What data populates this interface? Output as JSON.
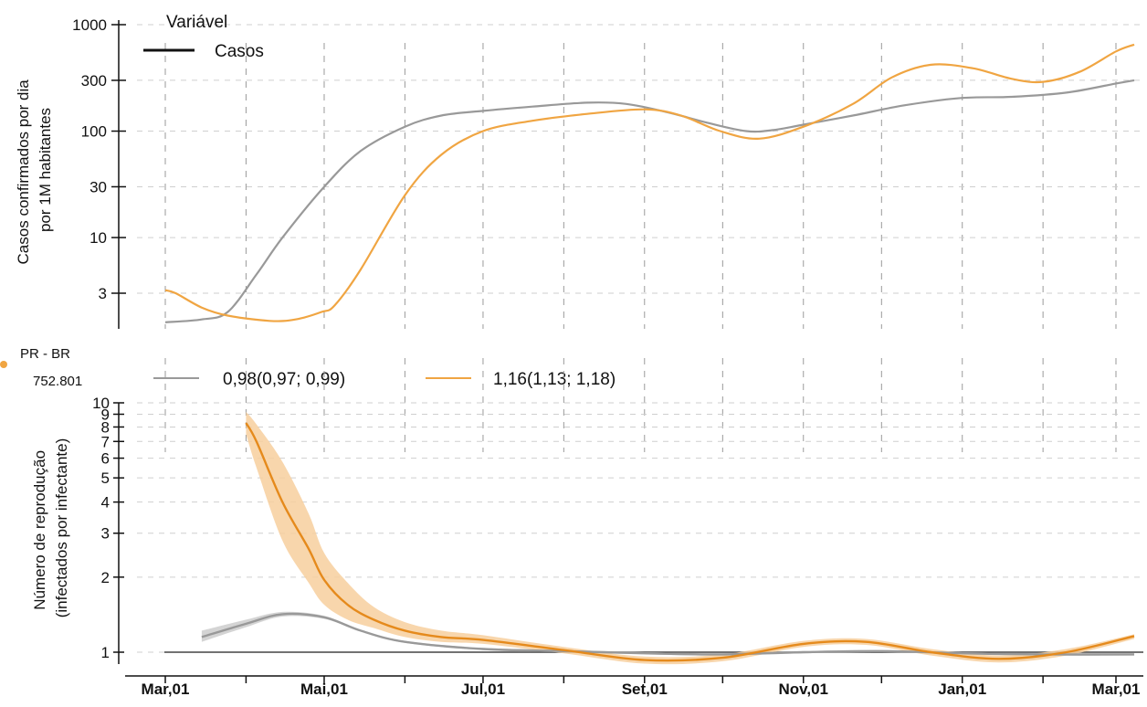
{
  "chart_data": [
    {
      "type": "line",
      "ylabel": "Casos confirmados por dia\npor 1M habitantes",
      "yscale": "log",
      "ylim": [
        1.5,
        1000
      ],
      "yticks": [
        {
          "value": 3,
          "label": "3"
        },
        {
          "value": 10,
          "label": "10"
        },
        {
          "value": 30,
          "label": "30"
        },
        {
          "value": 100,
          "label": "100"
        },
        {
          "value": 300,
          "label": "300"
        },
        {
          "value": 1000,
          "label": "1000"
        }
      ],
      "legend": {
        "title": "Variável",
        "items": [
          {
            "label": "Casos",
            "color": "#111111"
          }
        ]
      },
      "xlim": [
        "2020-03-01",
        "2021-03-01"
      ],
      "series": [
        {
          "color": "#999999",
          "points": [
            [
              "2020-03-01",
              1.6
            ],
            [
              "2020-03-15",
              1.7
            ],
            [
              "2020-03-25",
              2.0
            ],
            [
              "2020-04-05",
              4.5
            ],
            [
              "2020-04-15",
              10
            ],
            [
              "2020-05-01",
              30
            ],
            [
              "2020-05-15",
              65
            ],
            [
              "2020-06-01",
              110
            ],
            [
              "2020-06-15",
              140
            ],
            [
              "2020-07-01",
              155
            ],
            [
              "2020-07-20",
              170
            ],
            [
              "2020-08-10",
              185
            ],
            [
              "2020-08-25",
              180
            ],
            [
              "2020-09-10",
              150
            ],
            [
              "2020-09-25",
              120
            ],
            [
              "2020-10-10",
              100
            ],
            [
              "2020-10-20",
              102
            ],
            [
              "2020-11-01",
              115
            ],
            [
              "2020-11-20",
              140
            ],
            [
              "2020-12-10",
              175
            ],
            [
              "2021-01-01",
              205
            ],
            [
              "2021-01-20",
              210
            ],
            [
              "2021-02-10",
              230
            ],
            [
              "2021-03-01",
              280
            ],
            [
              "2021-03-08",
              300
            ]
          ]
        },
        {
          "color": "#f0a542",
          "points": [
            [
              "2020-03-01",
              3.2
            ],
            [
              "2020-03-05",
              3.0
            ],
            [
              "2020-03-15",
              2.2
            ],
            [
              "2020-03-25",
              1.85
            ],
            [
              "2020-04-10",
              1.65
            ],
            [
              "2020-04-20",
              1.7
            ],
            [
              "2020-04-30",
              2.0
            ],
            [
              "2020-05-05",
              2.3
            ],
            [
              "2020-05-15",
              5
            ],
            [
              "2020-06-01",
              25
            ],
            [
              "2020-06-15",
              60
            ],
            [
              "2020-07-01",
              100
            ],
            [
              "2020-07-20",
              125
            ],
            [
              "2020-08-10",
              145
            ],
            [
              "2020-09-01",
              160
            ],
            [
              "2020-09-15",
              140
            ],
            [
              "2020-09-30",
              100
            ],
            [
              "2020-10-15",
              85
            ],
            [
              "2020-11-01",
              110
            ],
            [
              "2020-11-20",
              180
            ],
            [
              "2020-12-05",
              320
            ],
            [
              "2020-12-20",
              420
            ],
            [
              "2021-01-05",
              390
            ],
            [
              "2021-01-20",
              310
            ],
            [
              "2021-02-01",
              290
            ],
            [
              "2021-02-15",
              360
            ],
            [
              "2021-03-01",
              560
            ],
            [
              "2021-03-08",
              650
            ]
          ]
        }
      ]
    },
    {
      "type": "area",
      "title": "PR - BR",
      "subtitle": "752.801",
      "ylabel": "Número de reprodução\n(infectados por infectante)",
      "yscale": "log",
      "ylim": [
        0.85,
        10
      ],
      "yticks": [
        {
          "value": 1,
          "label": "1"
        },
        {
          "value": 2,
          "label": "2"
        },
        {
          "value": 3,
          "label": "3"
        },
        {
          "value": 4,
          "label": "4"
        },
        {
          "value": 5,
          "label": "5"
        },
        {
          "value": 6,
          "label": "6"
        },
        {
          "value": 7,
          "label": "7"
        },
        {
          "value": 8,
          "label": "8"
        },
        {
          "value": 9,
          "label": "9"
        },
        {
          "value": 10,
          "label": "10"
        }
      ],
      "xlim": [
        "2020-03-01",
        "2021-03-01"
      ],
      "xticks": [
        {
          "date": "2020-03-01",
          "label": "Mar,01"
        },
        {
          "date": "2020-05-01",
          "label": "Mai,01"
        },
        {
          "date": "2020-07-01",
          "label": "Jul,01"
        },
        {
          "date": "2020-09-01",
          "label": "Set,01"
        },
        {
          "date": "2020-11-01",
          "label": "Nov,01"
        },
        {
          "date": "2021-01-01",
          "label": "Jan,01"
        },
        {
          "date": "2021-03-01",
          "label": "Mar,01"
        }
      ],
      "reference_line": 1,
      "series": [
        {
          "name": "0,98(0,97; 0,99)",
          "color": "#999999",
          "band_color": "#cccccc",
          "points": [
            [
              "2020-03-15",
              1.15,
              1.1,
              1.22
            ],
            [
              "2020-04-01",
              1.3,
              1.26,
              1.35
            ],
            [
              "2020-04-15",
              1.42,
              1.39,
              1.45
            ],
            [
              "2020-05-01",
              1.38,
              1.36,
              1.4
            ],
            [
              "2020-05-15",
              1.22,
              1.21,
              1.23
            ],
            [
              "2020-06-01",
              1.1,
              1.09,
              1.11
            ],
            [
              "2020-07-01",
              1.03,
              1.02,
              1.04
            ],
            [
              "2020-08-01",
              1.01,
              1.0,
              1.02
            ],
            [
              "2020-09-01",
              0.99,
              0.98,
              1.0
            ],
            [
              "2020-10-01",
              0.98,
              0.97,
              0.99
            ],
            [
              "2020-11-01",
              1.0,
              0.99,
              1.01
            ],
            [
              "2020-12-01",
              1.01,
              1.0,
              1.02
            ],
            [
              "2021-01-01",
              0.99,
              0.98,
              1.0
            ],
            [
              "2021-02-01",
              0.98,
              0.97,
              0.99
            ],
            [
              "2021-03-08",
              0.98,
              0.97,
              0.99
            ]
          ]
        },
        {
          "name": "1,16(1,13; 1,18)",
          "color": "#e58a1c",
          "band_color": "#f7cf9d",
          "points": [
            [
              "2020-04-01",
              8.3,
              7.5,
              9.2
            ],
            [
              "2020-04-05",
              7.0,
              5.5,
              8.2
            ],
            [
              "2020-04-15",
              4.0,
              2.8,
              5.8
            ],
            [
              "2020-04-25",
              2.6,
              1.9,
              3.6
            ],
            [
              "2020-05-01",
              1.95,
              1.55,
              2.5
            ],
            [
              "2020-05-10",
              1.55,
              1.35,
              1.9
            ],
            [
              "2020-05-20",
              1.35,
              1.25,
              1.52
            ],
            [
              "2020-06-01",
              1.22,
              1.15,
              1.32
            ],
            [
              "2020-06-15",
              1.15,
              1.1,
              1.22
            ],
            [
              "2020-07-01",
              1.12,
              1.08,
              1.17
            ],
            [
              "2020-08-01",
              1.02,
              0.99,
              1.05
            ],
            [
              "2020-09-01",
              0.93,
              0.9,
              0.96
            ],
            [
              "2020-10-01",
              0.95,
              0.92,
              0.98
            ],
            [
              "2020-11-01",
              1.08,
              1.05,
              1.11
            ],
            [
              "2020-11-25",
              1.1,
              1.07,
              1.13
            ],
            [
              "2020-12-20",
              1.0,
              0.97,
              1.03
            ],
            [
              "2021-01-15",
              0.94,
              0.91,
              0.97
            ],
            [
              "2021-02-10",
              1.0,
              0.97,
              1.03
            ],
            [
              "2021-03-08",
              1.16,
              1.13,
              1.18
            ]
          ]
        }
      ]
    }
  ]
}
